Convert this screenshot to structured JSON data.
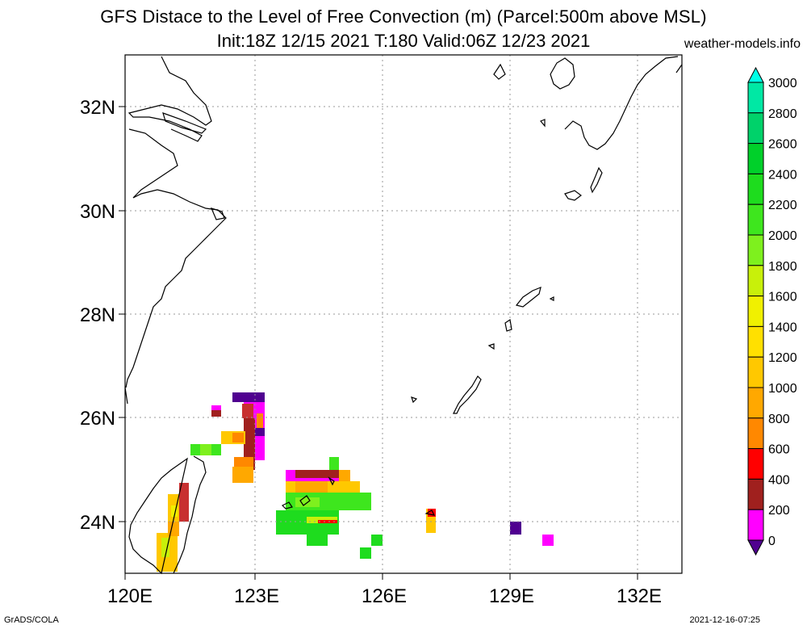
{
  "header": {
    "title_line1": "GFS Distace to the Level of Free Convection (m) (Parcel:500m above MSL)",
    "title_line2": "Init:18Z 12/15 2021 T:180 Valid:06Z 12/23 2021",
    "site": "weather-models.info"
  },
  "footer": {
    "left": "GrADS/COLA",
    "right": "2021-12-16-07:25"
  },
  "map": {
    "lon_labels": [
      "120E",
      "123E",
      "126E",
      "129E",
      "132E"
    ],
    "lat_labels": [
      "32N",
      "30N",
      "28N",
      "26N",
      "24N"
    ],
    "lon_range": [
      120,
      133
    ],
    "lat_range": [
      23,
      33
    ]
  },
  "colorbar": {
    "labels": [
      "3000",
      "2800",
      "2600",
      "2400",
      "2200",
      "2000",
      "1800",
      "1600",
      "1400",
      "1200",
      "1000",
      "800",
      "600",
      "400",
      "200",
      "0"
    ],
    "colors": [
      "#00ffe6",
      "#00e8a4",
      "#00d26a",
      "#00d02a",
      "#1edc1e",
      "#3ee61e",
      "#7ef01e",
      "#c8f00a",
      "#f0f000",
      "#ffe000",
      "#ffc800",
      "#ffa800",
      "#ff8800",
      "#ff0000",
      "#a0201e",
      "#ff00ff",
      "#500090"
    ]
  }
}
